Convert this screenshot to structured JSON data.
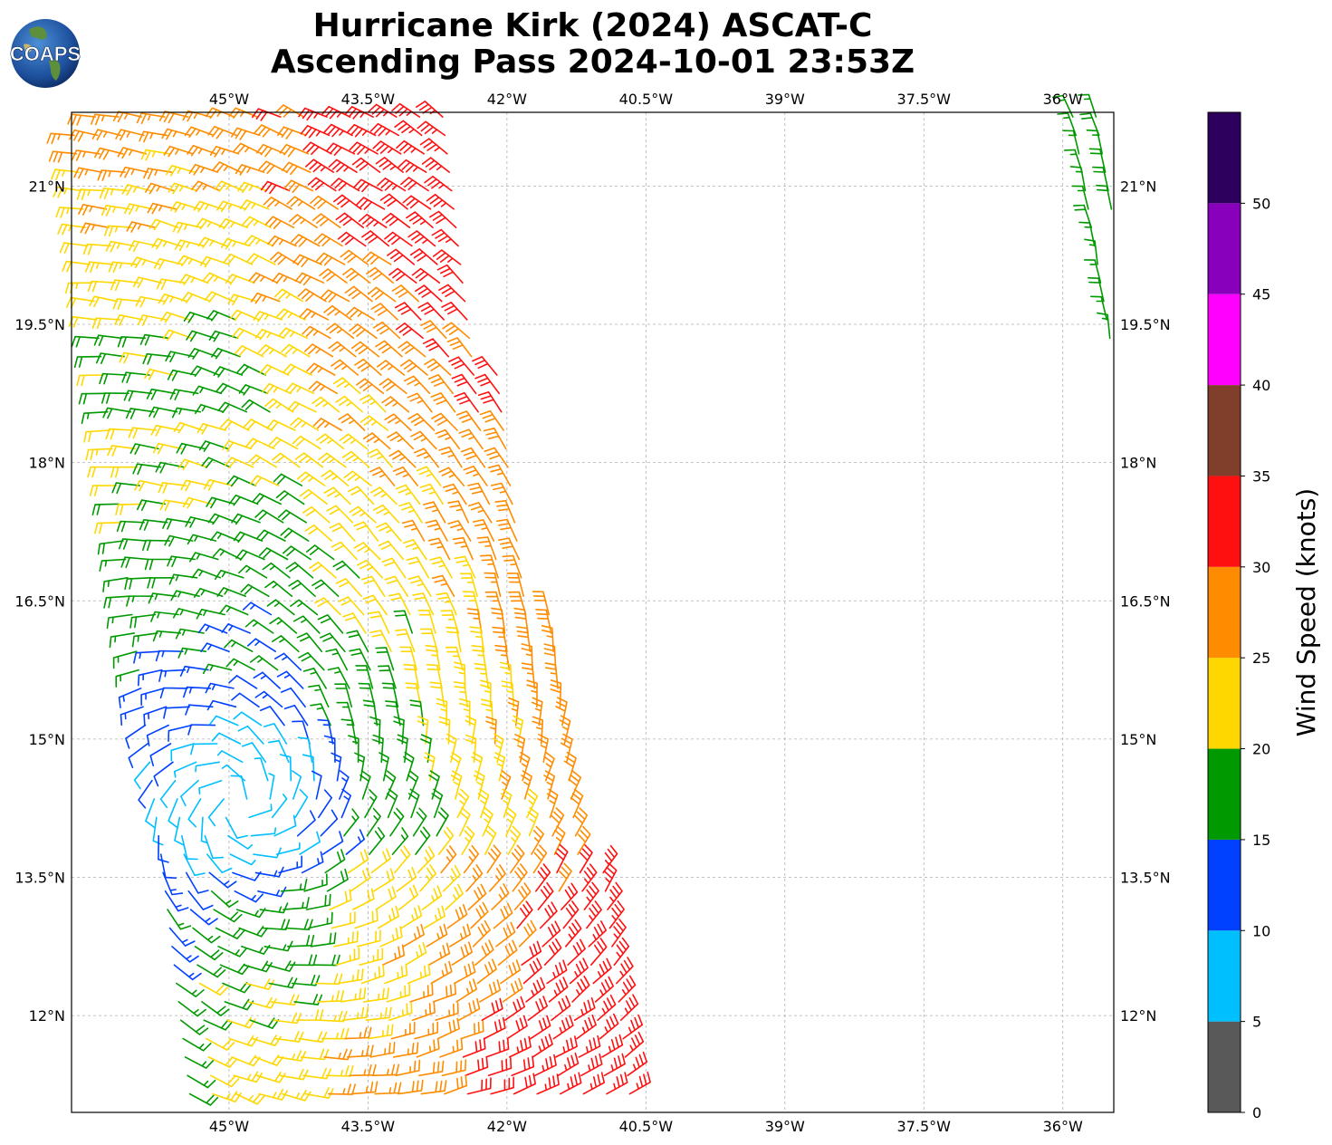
{
  "header": {
    "title_line1": "Hurricane Kirk (2024) ASCAT-C",
    "title_line2": "Ascending Pass 2024-10-01 23:53Z",
    "logo_text": "COAPS"
  },
  "map": {
    "lon_range": [
      -46.7,
      -35.45
    ],
    "lat_range": [
      10.95,
      21.8
    ],
    "lon_ticks": [
      {
        "value": -45.0,
        "label": "45°W"
      },
      {
        "value": -43.5,
        "label": "43.5°W"
      },
      {
        "value": -42.0,
        "label": "42°W"
      },
      {
        "value": -40.5,
        "label": "40.5°W"
      },
      {
        "value": -39.0,
        "label": "39°W"
      },
      {
        "value": -37.5,
        "label": "37.5°W"
      },
      {
        "value": -36.0,
        "label": "36°W"
      }
    ],
    "lat_ticks": [
      {
        "value": 21.0,
        "label": "21°N"
      },
      {
        "value": 19.5,
        "label": "19.5°N"
      },
      {
        "value": 18.0,
        "label": "18°N"
      },
      {
        "value": 16.5,
        "label": "16.5°N"
      },
      {
        "value": 15.0,
        "label": "15°N"
      },
      {
        "value": 13.5,
        "label": "13.5°N"
      },
      {
        "value": 12.0,
        "label": "12°N"
      }
    ],
    "gridlines": true,
    "storm_center": {
      "lon": -44.9,
      "lat": 14.3
    },
    "swaths": [
      {
        "name": "main",
        "lat_min": 10.95,
        "lat_max": 21.8,
        "lon_west_north": -46.7,
        "lon_east_north": -42.7,
        "lon_west_south": -45.4,
        "lon_east_south": -40.4
      },
      {
        "name": "east",
        "lat_min": 19.1,
        "lat_max": 21.8,
        "lon_west_north": -35.9,
        "lon_east_north": -35.45,
        "lon_west_south": -35.45,
        "lon_east_south": -35.45
      }
    ]
  },
  "colorbar": {
    "label": "Wind Speed (knots)",
    "ticks": [
      {
        "value": 0,
        "label": "0"
      },
      {
        "value": 5,
        "label": "5"
      },
      {
        "value": 10,
        "label": "10"
      },
      {
        "value": 15,
        "label": "15"
      },
      {
        "value": 20,
        "label": "20"
      },
      {
        "value": 25,
        "label": "25"
      },
      {
        "value": 30,
        "label": "30"
      },
      {
        "value": 35,
        "label": "35"
      },
      {
        "value": 40,
        "label": "40"
      },
      {
        "value": 45,
        "label": "45"
      },
      {
        "value": 50,
        "label": "50"
      }
    ],
    "bins": [
      {
        "from": 0,
        "to": 5,
        "color": "#595959"
      },
      {
        "from": 5,
        "to": 10,
        "color": "#00bfff"
      },
      {
        "from": 10,
        "to": 15,
        "color": "#0040ff"
      },
      {
        "from": 15,
        "to": 20,
        "color": "#009900"
      },
      {
        "from": 20,
        "to": 25,
        "color": "#ffd700"
      },
      {
        "from": 25,
        "to": 30,
        "color": "#ff8c00"
      },
      {
        "from": 30,
        "to": 35,
        "color": "#ff1010"
      },
      {
        "from": 35,
        "to": 40,
        "color": "#803f2a"
      },
      {
        "from": 40,
        "to": 45,
        "color": "#ff00ff"
      },
      {
        "from": 45,
        "to": 50,
        "color": "#8800bb"
      },
      {
        "from": 50,
        "to": 55,
        "color": "#2e005e"
      }
    ]
  }
}
